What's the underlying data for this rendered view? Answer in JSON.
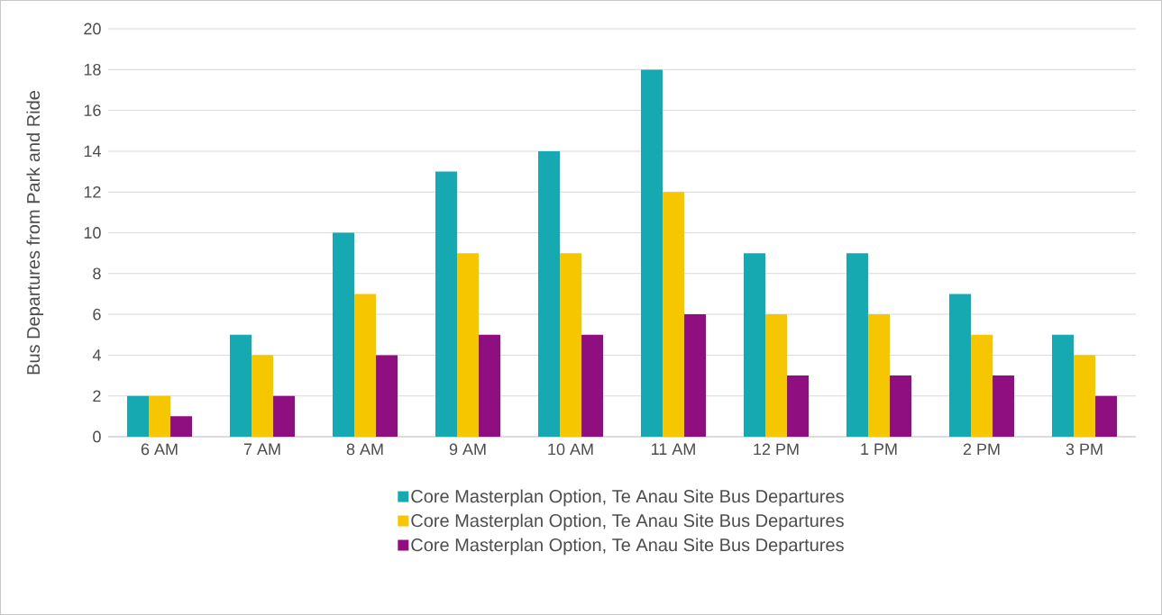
{
  "chart_data": {
    "type": "bar",
    "ylabel": "Bus Departures from Park and Ride",
    "categories": [
      "6 AM",
      "7 AM",
      "8 AM",
      "9 AM",
      "10 AM",
      "11 AM",
      "12 PM",
      "1 PM",
      "2 PM",
      "3 PM"
    ],
    "series": [
      {
        "name": "Core Masterplan Option, Te Anau Site Bus Departures",
        "color": "#17a9b1",
        "values": [
          2,
          5,
          10,
          13,
          14,
          18,
          9,
          9,
          7,
          5
        ]
      },
      {
        "name": "Core Masterplan Option, Te Anau Site Bus Departures",
        "color": "#f6c600",
        "values": [
          2,
          4,
          7,
          9,
          9,
          12,
          6,
          6,
          5,
          4
        ]
      },
      {
        "name": "Core Masterplan Option, Te Anau Site Bus Departures",
        "color": "#8f0f80",
        "values": [
          1,
          2,
          4,
          5,
          5,
          6,
          3,
          3,
          3,
          2
        ]
      }
    ],
    "ylim": [
      0,
      20
    ],
    "yticks": [
      0,
      2,
      4,
      6,
      8,
      10,
      12,
      14,
      16,
      18,
      20
    ],
    "grid": "y",
    "legend": "bottom"
  }
}
